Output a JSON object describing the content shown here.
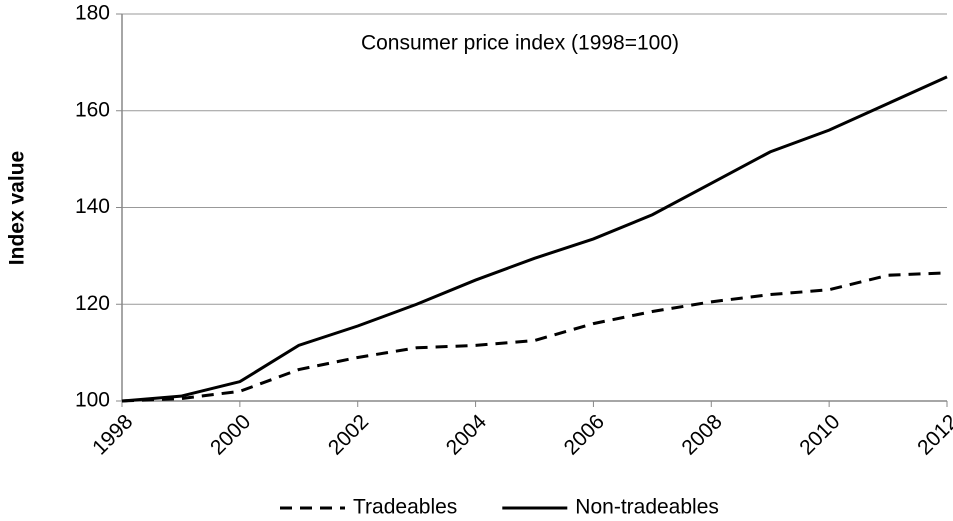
{
  "chart_data": {
    "type": "line",
    "title": "Consumer price index (1998=100)",
    "y_label": "Index value",
    "x": [
      1998,
      1999,
      2000,
      2001,
      2002,
      2003,
      2004,
      2005,
      2006,
      2007,
      2008,
      2009,
      2010,
      2011,
      2012
    ],
    "series": [
      {
        "name": "Tradeables",
        "color": "#000000",
        "style": "dashed",
        "values": [
          100,
          100.5,
          102,
          106.5,
          109,
          111,
          111.5,
          112.5,
          116,
          118.5,
          120.5,
          122,
          123,
          126,
          126.5
        ]
      },
      {
        "name": "Non-tradeables",
        "color": "#000000",
        "style": "solid",
        "values": [
          100,
          101,
          104,
          111.5,
          115.5,
          120,
          125,
          129.5,
          133.5,
          138.5,
          145,
          151.5,
          156,
          161.5,
          167
        ]
      }
    ],
    "xlim": [
      1998,
      2012
    ],
    "xticks": [
      1998,
      2000,
      2002,
      2004,
      2006,
      2008,
      2010,
      2012
    ],
    "ylim": [
      100,
      180
    ],
    "yticks": [
      100,
      120,
      140,
      160,
      180
    ],
    "grid": true,
    "legend": "bottom"
  }
}
